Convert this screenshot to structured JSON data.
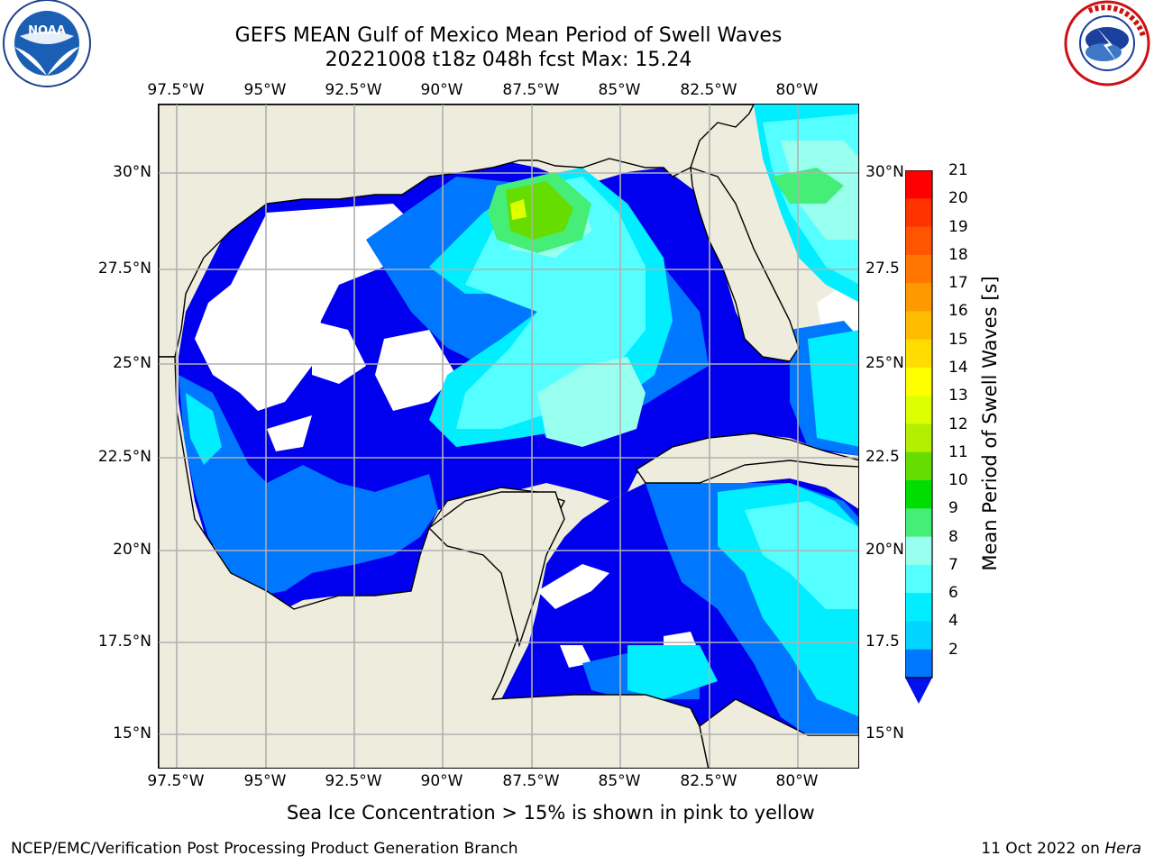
{
  "header": {
    "title_line1": "GEFS MEAN Gulf of Mexico Mean Period of Swell Waves",
    "title_line2": "20221008 t18z 048h fcst   Max: 15.24"
  },
  "logos": {
    "left": {
      "name": "noaa-logo",
      "text": "NOAA",
      "ring_text": "NATIONAL OCEANIC AND ATMOSPHERIC ADMINISTRATION · U.S. DEPARTMENT OF COMMERCE"
    },
    "right": {
      "name": "nws-logo",
      "ring_text": "NATIONAL WEATHER SERVICE"
    }
  },
  "map": {
    "lon_labels": [
      "97.5°W",
      "95°W",
      "92.5°W",
      "90°W",
      "87.5°W",
      "85°W",
      "82.5°W",
      "80°W"
    ],
    "lat_labels_left": [
      "30°N",
      "27.5°N",
      "25°N",
      "22.5°N",
      "20°N",
      "17.5°N",
      "15°N"
    ],
    "lat_labels_right": [
      "30°N",
      "27.5",
      "25°N",
      "22.5",
      "20°N",
      "17.5",
      "15°N"
    ],
    "colors": {
      "land": "#eeecdc",
      "gridline": "#b0b0b0",
      "coast": "#000000"
    }
  },
  "colorbar": {
    "label": "Mean Period of Swell Waves [s]",
    "ticks": [
      "21",
      "20",
      "19",
      "18",
      "17",
      "16",
      "15",
      "14",
      "13",
      "12",
      "11",
      "10",
      "9",
      "8",
      "7",
      "6",
      "4",
      "2"
    ],
    "colors": [
      "#ff0000",
      "#ff3300",
      "#ff5500",
      "#ff7700",
      "#ff9900",
      "#ffbb00",
      "#ffdd00",
      "#ffff00",
      "#ddff00",
      "#b4ee00",
      "#66dd00",
      "#00dd00",
      "#44ee77",
      "#99ffee",
      "#55ffff",
      "#00eeff",
      "#00d4ff",
      "#0077ff"
    ],
    "extend_color": "#0011ee"
  },
  "footnote": "Sea Ice Concentration > 15% is shown in pink to yellow",
  "footer": {
    "credit": "NCEP/EMC/Verification Post Processing Product Generation Branch",
    "date": "11 Oct 2022 on",
    "machine": "Hera"
  }
}
